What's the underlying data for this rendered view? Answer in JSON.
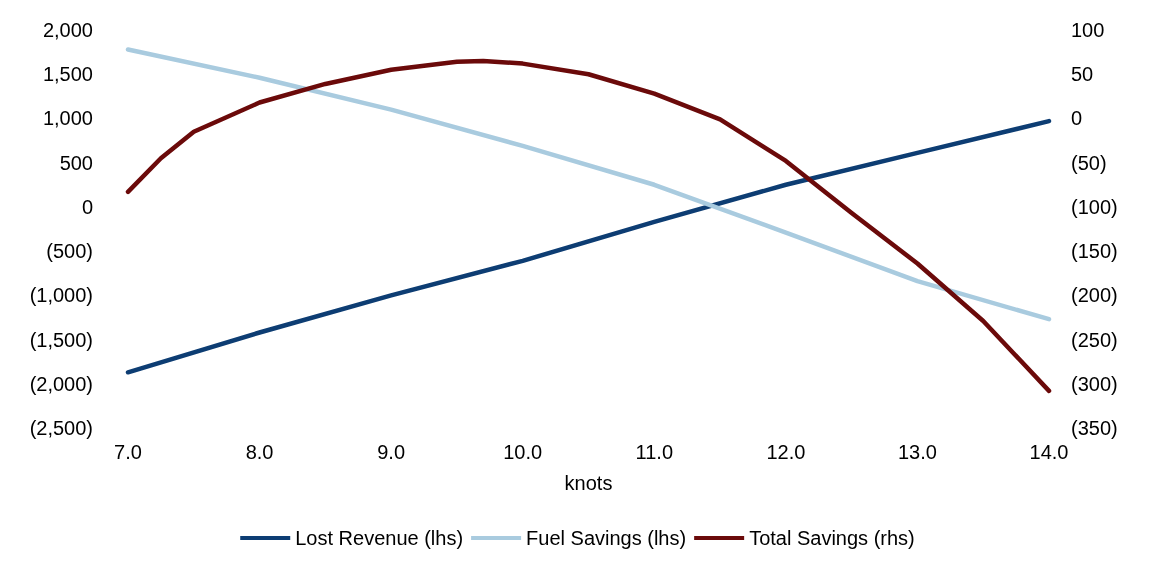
{
  "chart_data": {
    "type": "line",
    "xlabel": "knots",
    "x": [
      7,
      7.25,
      7.5,
      8,
      8.5,
      9,
      9.5,
      9.7,
      10,
      10.5,
      11,
      11.5,
      12,
      12.5,
      13,
      13.5,
      14
    ],
    "series": [
      {
        "name": "Lost Revenue (lhs)",
        "color": "#0d3d73",
        "x": [
          7,
          8,
          9,
          10,
          11,
          12,
          13,
          14
        ],
        "values": [
          -1870,
          -1420,
          -1000,
          -610,
          -170,
          250,
          610,
          970
        ]
      },
      {
        "name": "Fuel Savings (lhs)",
        "color": "#a9cbdf",
        "x": [
          7,
          8,
          9,
          10,
          11,
          12,
          13,
          14
        ],
        "values": [
          1780,
          1460,
          1100,
          690,
          250,
          -290,
          -840,
          -1270
        ]
      },
      {
        "name": "Total Savings (rhs)",
        "color": "#6b0a0a",
        "axis": "y2",
        "values": [
          -83,
          -45,
          -15,
          18,
          39,
          55,
          64,
          65,
          62,
          50,
          28,
          -1,
          -48,
          -107,
          -164,
          -229,
          -308
        ]
      }
    ],
    "xlim": [
      7,
      14
    ],
    "xticks": [
      {
        "value": 7,
        "label": "7.0"
      },
      {
        "value": 8,
        "label": "8.0"
      },
      {
        "value": 9,
        "label": "9.0"
      },
      {
        "value": 10,
        "label": "10.0"
      },
      {
        "value": 11,
        "label": "11.0"
      },
      {
        "value": 12,
        "label": "12.0"
      },
      {
        "value": 13,
        "label": "13.0"
      },
      {
        "value": 14,
        "label": "14.0"
      }
    ],
    "ylim": [
      -2500,
      2000
    ],
    "yticks": [
      {
        "value": -2500,
        "label": "(2,500)"
      },
      {
        "value": -2000,
        "label": "(2,000)"
      },
      {
        "value": -1500,
        "label": "(1,500)"
      },
      {
        "value": -1000,
        "label": "(1,000)"
      },
      {
        "value": -500,
        "label": "(500)"
      },
      0,
      500,
      {
        "value": 1000,
        "label": "1,000"
      },
      {
        "value": 1500,
        "label": "1,500"
      },
      {
        "value": 2000,
        "label": "2,000"
      }
    ],
    "y2lim": [
      -350,
      100
    ],
    "y2ticks": [
      {
        "value": -350,
        "label": "(350)"
      },
      {
        "value": -300,
        "label": "(300)"
      },
      {
        "value": -250,
        "label": "(250)"
      },
      {
        "value": -200,
        "label": "(200)"
      },
      {
        "value": -150,
        "label": "(150)"
      },
      {
        "value": -100,
        "label": "(100)"
      },
      {
        "value": -50,
        "label": "(50)"
      },
      0,
      50,
      100
    ],
    "legend": "bottom",
    "marker": "none",
    "line_style": "solid",
    "grid": false
  }
}
